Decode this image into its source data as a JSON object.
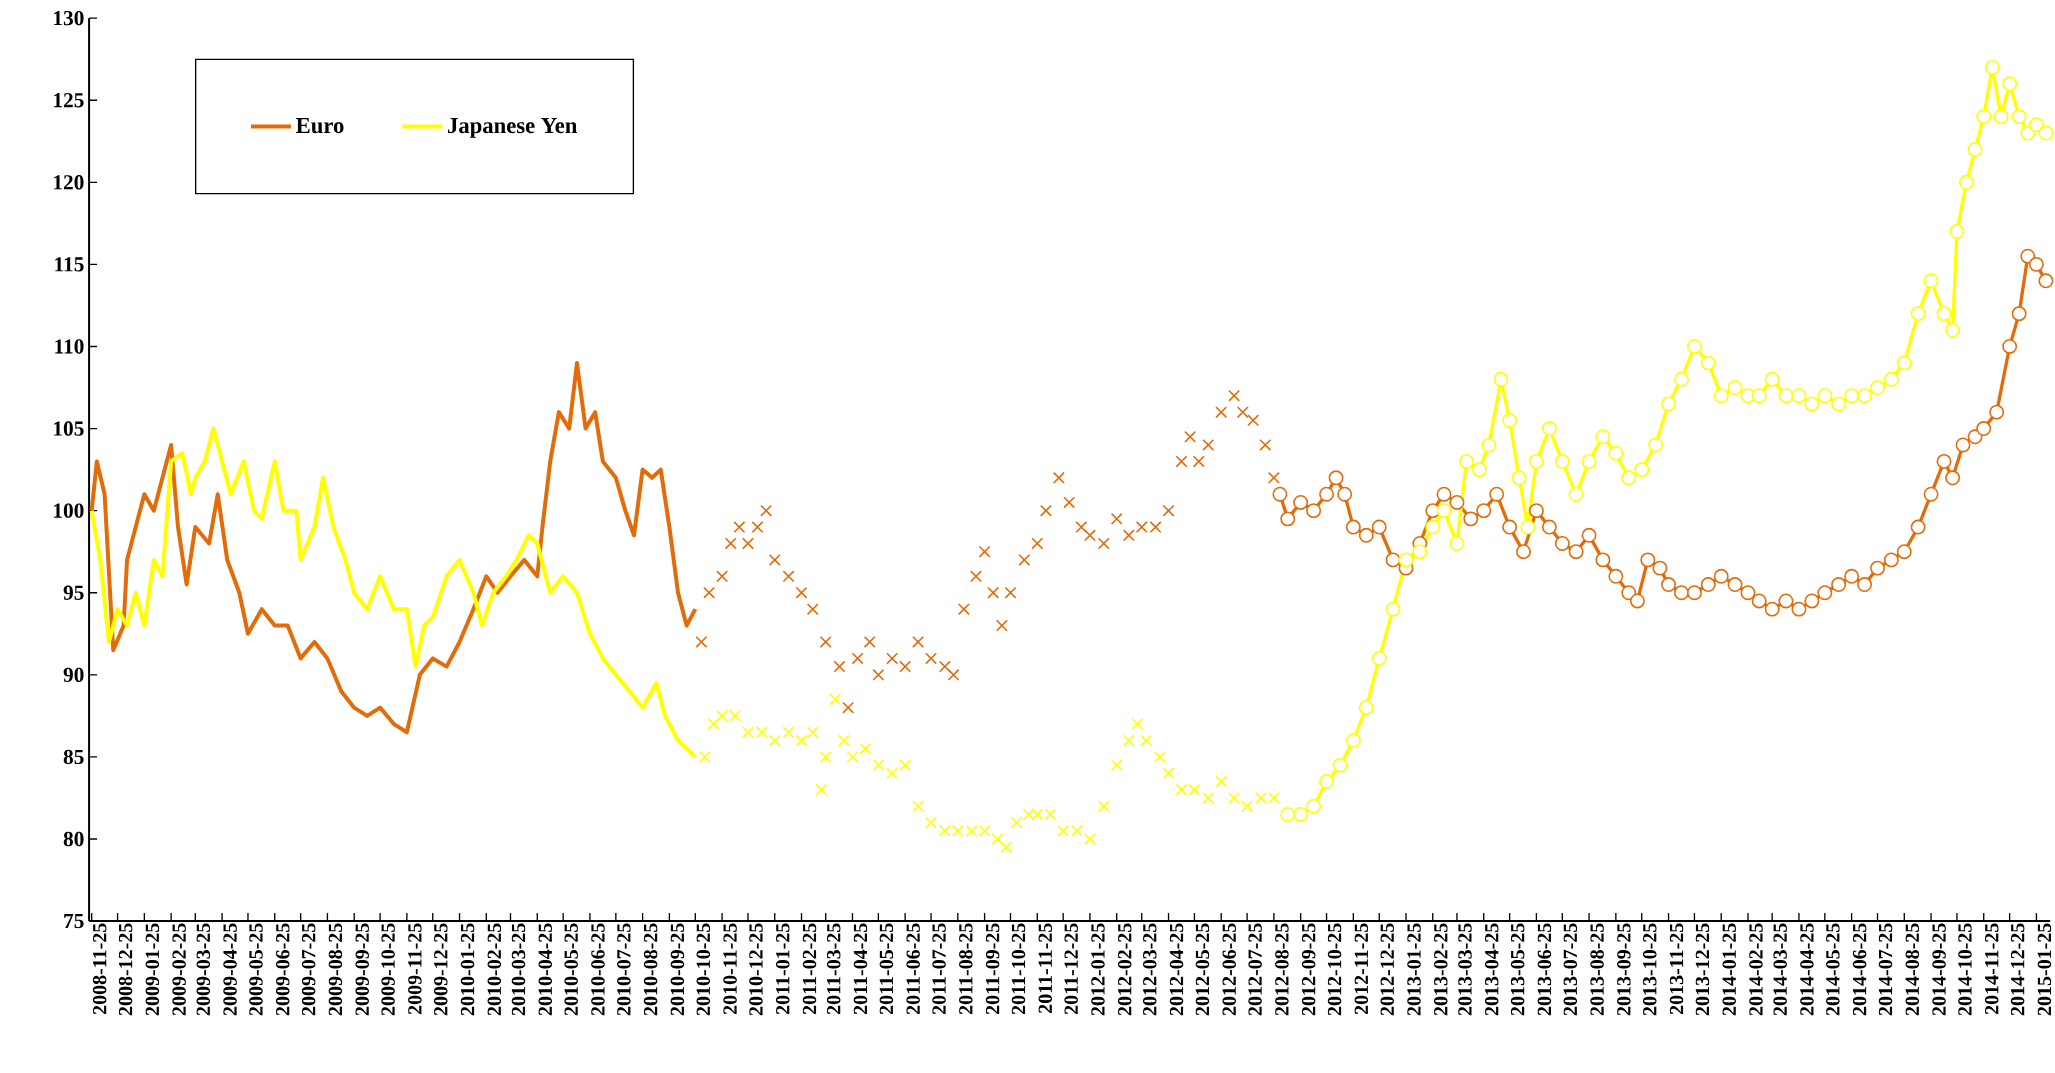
{
  "chart_data": {
    "type": "line",
    "xlim": [
      "2008-11-22",
      "2015-02-10"
    ],
    "ylim": [
      75,
      130
    ],
    "yticks": [
      75,
      80,
      85,
      90,
      95,
      100,
      105,
      110,
      115,
      120,
      125,
      130
    ],
    "xticks": [
      "2008-11-25",
      "2008-12-25",
      "2009-01-25",
      "2009-02-25",
      "2009-03-25",
      "2009-04-25",
      "2009-05-25",
      "2009-06-25",
      "2009-07-25",
      "2009-08-25",
      "2009-09-25",
      "2009-10-25",
      "2009-11-25",
      "2009-12-25",
      "2010-01-25",
      "2010-02-25",
      "2010-03-25",
      "2010-04-25",
      "2010-05-25",
      "2010-06-25",
      "2010-07-25",
      "2010-08-25",
      "2010-09-25",
      "2010-10-25",
      "2010-11-25",
      "2010-12-25",
      "2011-01-25",
      "2011-02-25",
      "2011-03-25",
      "2011-04-25",
      "2011-05-25",
      "2011-06-25",
      "2011-07-25",
      "2011-08-25",
      "2011-09-25",
      "2011-10-25",
      "2011-11-25",
      "2011-12-25",
      "2012-01-25",
      "2012-02-25",
      "2012-03-25",
      "2012-04-25",
      "2012-05-25",
      "2012-06-25",
      "2012-07-25",
      "2012-08-25",
      "2012-09-25",
      "2012-10-25",
      "2012-11-25",
      "2012-12-25",
      "2013-01-25",
      "2013-02-25",
      "2013-03-25",
      "2013-04-25",
      "2013-05-25",
      "2013-06-25",
      "2013-07-25",
      "2013-08-25",
      "2013-09-25",
      "2013-10-25",
      "2013-11-25",
      "2013-12-25",
      "2014-01-25",
      "2014-02-25",
      "2014-03-25",
      "2014-04-25",
      "2014-05-25",
      "2014-06-25",
      "2014-07-25",
      "2014-08-25",
      "2014-09-25",
      "2014-10-25",
      "2014-11-25",
      "2014-12-25",
      "2015-01-25"
    ],
    "legend": "top left",
    "grid": false,
    "series": [
      {
        "name": "Euro",
        "marker": "none",
        "color": "#e36c0a",
        "x": [
          "2008-11-25",
          "2008-12-01",
          "2008-12-10",
          "2008-12-20",
          "2009-01-01",
          "2009-01-05",
          "2009-01-15",
          "2009-01-25",
          "2009-02-05",
          "2009-02-15",
          "2009-02-25",
          "2009-03-05",
          "2009-03-15",
          "2009-03-25",
          "2009-04-10",
          "2009-04-20",
          "2009-05-01",
          "2009-05-15",
          "2009-05-25",
          "2009-06-10",
          "2009-06-25",
          "2009-07-10",
          "2009-07-25",
          "2009-08-10",
          "2009-08-25",
          "2009-09-10",
          "2009-09-25",
          "2009-10-10",
          "2009-10-25",
          "2009-11-10",
          "2009-11-25",
          "2009-12-10",
          "2009-12-25",
          "2010-01-10",
          "2010-01-25",
          "2010-02-10",
          "2010-02-25",
          "2010-03-10",
          "2010-03-25",
          "2010-04-10",
          "2010-04-25",
          "2010-05-01",
          "2010-05-10",
          "2010-05-20",
          "2010-06-01",
          "2010-06-10",
          "2010-06-20",
          "2010-07-01",
          "2010-07-10",
          "2010-07-25",
          "2010-08-05",
          "2010-08-15",
          "2010-08-25",
          "2010-09-05",
          "2010-09-15",
          "2010-09-25",
          "2010-10-05",
          "2010-10-15",
          "2010-10-25"
        ],
        "values": [
          100,
          103,
          101,
          91.5,
          93,
          97,
          99,
          101,
          100,
          102,
          104,
          99,
          95.5,
          99,
          98,
          101,
          97,
          95,
          92.5,
          94,
          93,
          93,
          91,
          92,
          91,
          89,
          88,
          87.5,
          88,
          87,
          86.5,
          90,
          91,
          90.5,
          92,
          94,
          96,
          95,
          96,
          97,
          96,
          99,
          103,
          106,
          105,
          109,
          105,
          106,
          103,
          102,
          100,
          98.5,
          102.5,
          102,
          102.5,
          99,
          95,
          93,
          94
        ]
      },
      {
        "name": "Japanese Yen",
        "marker": "none",
        "color": "#ffff00",
        "x": [
          "2008-11-25",
          "2008-12-05",
          "2008-12-15",
          "2008-12-25",
          "2009-01-05",
          "2009-01-15",
          "2009-01-25",
          "2009-02-05",
          "2009-02-15",
          "2009-02-25",
          "2009-03-10",
          "2009-03-20",
          "2009-03-25",
          "2009-04-05",
          "2009-04-15",
          "2009-04-25",
          "2009-05-05",
          "2009-05-20",
          "2009-06-01",
          "2009-06-10",
          "2009-06-25",
          "2009-07-05",
          "2009-07-20",
          "2009-07-25",
          "2009-08-10",
          "2009-08-20",
          "2009-09-01",
          "2009-09-15",
          "2009-09-25",
          "2009-10-10",
          "2009-10-25",
          "2009-11-10",
          "2009-11-25",
          "2009-12-05",
          "2009-12-15",
          "2009-12-25",
          "2010-01-10",
          "2010-01-25",
          "2010-02-10",
          "2010-02-20",
          "2010-03-05",
          "2010-03-20",
          "2010-04-01",
          "2010-04-15",
          "2010-04-25",
          "2010-05-10",
          "2010-05-25",
          "2010-06-10",
          "2010-06-25",
          "2010-07-10",
          "2010-07-25",
          "2010-08-10",
          "2010-08-25",
          "2010-09-10",
          "2010-09-20",
          "2010-10-05",
          "2010-10-25"
        ],
        "values": [
          100,
          97,
          92,
          94,
          93,
          95,
          93,
          97,
          96,
          103,
          103.5,
          101,
          102,
          103,
          105,
          103,
          101,
          103,
          100,
          99.5,
          103,
          100,
          100,
          97,
          99,
          102,
          99,
          97,
          95,
          94,
          96,
          94,
          94,
          90.5,
          93,
          93.5,
          96,
          97,
          95,
          93,
          95,
          96,
          97,
          98.5,
          98,
          95,
          96,
          95,
          92.5,
          91,
          90,
          89,
          88,
          89.5,
          87.5,
          86,
          85
        ]
      },
      {
        "type": "scatter",
        "marker": "cross",
        "color": "#e36c0a",
        "x": [
          "2010-11-01",
          "2010-11-10",
          "2010-11-25",
          "2010-12-05",
          "2010-12-15",
          "2010-12-25",
          "2011-01-05",
          "2011-01-15",
          "2011-01-25",
          "2011-02-10",
          "2011-02-25",
          "2011-03-10",
          "2011-03-25",
          "2011-04-10",
          "2011-04-20",
          "2011-05-01",
          "2011-05-15",
          "2011-05-25",
          "2011-06-10",
          "2011-06-25",
          "2011-07-10",
          "2011-07-25",
          "2011-08-10",
          "2011-08-20",
          "2011-09-01",
          "2011-09-15",
          "2011-09-25",
          "2011-10-05",
          "2011-10-15",
          "2011-10-25",
          "2011-11-10",
          "2011-11-25",
          "2011-12-05",
          "2011-12-20",
          "2012-01-01",
          "2012-01-15",
          "2012-01-25",
          "2012-02-10",
          "2012-02-25",
          "2012-03-10",
          "2012-03-25",
          "2012-04-10",
          "2012-04-25",
          "2012-05-10",
          "2012-05-20",
          "2012-05-30",
          "2012-06-10",
          "2012-06-25",
          "2012-07-10",
          "2012-07-20",
          "2012-08-01",
          "2012-08-15",
          "2012-08-25"
        ],
        "values": [
          92,
          95,
          96,
          98,
          99,
          98,
          99,
          100,
          97,
          96,
          95,
          94,
          92,
          90.5,
          88,
          91,
          92,
          90,
          91,
          90.5,
          92,
          91,
          90.5,
          90,
          94,
          96,
          97.5,
          95,
          93,
          95,
          97,
          98,
          100,
          102,
          100.5,
          99,
          98.5,
          98,
          99.5,
          98.5,
          99,
          99,
          100,
          103,
          104.5,
          103,
          104,
          106,
          107,
          106,
          105.5,
          104,
          102
        ]
      },
      {
        "type": "scatter",
        "marker": "cross",
        "color": "#ffff00",
        "x": [
          "2010-11-05",
          "2010-11-15",
          "2010-11-25",
          "2010-12-10",
          "2010-12-25",
          "2011-01-10",
          "2011-01-25",
          "2011-02-10",
          "2011-02-25",
          "2011-03-10",
          "2011-03-20",
          "2011-03-25",
          "2011-04-05",
          "2011-04-15",
          "2011-04-25",
          "2011-05-10",
          "2011-05-25",
          "2011-06-10",
          "2011-06-25",
          "2011-07-10",
          "2011-07-25",
          "2011-08-10",
          "2011-08-25",
          "2011-09-10",
          "2011-09-25",
          "2011-10-10",
          "2011-10-20",
          "2011-11-01",
          "2011-11-15",
          "2011-11-25",
          "2011-12-10",
          "2011-12-25",
          "2012-01-10",
          "2012-01-25",
          "2012-02-10",
          "2012-02-25",
          "2012-03-10",
          "2012-03-20",
          "2012-03-30",
          "2012-04-15",
          "2012-04-25",
          "2012-05-10",
          "2012-05-25",
          "2012-06-10",
          "2012-06-25",
          "2012-07-10",
          "2012-07-25",
          "2012-08-10",
          "2012-08-25"
        ],
        "values": [
          85,
          87,
          87.5,
          87.5,
          86.5,
          86.5,
          86,
          86.5,
          86,
          86.5,
          83,
          85,
          88.5,
          86,
          85,
          85.5,
          84.5,
          84,
          84.5,
          82,
          81,
          80.5,
          80.5,
          80.5,
          80.5,
          80,
          79.5,
          81,
          81.5,
          81.5,
          81.5,
          80.5,
          80.5,
          80,
          82,
          84.5,
          86,
          87,
          86,
          85,
          84,
          83,
          83,
          82.5,
          83.5,
          82.5,
          82,
          82.5,
          82.5
        ]
      },
      {
        "marker": "circle",
        "color": "#e36c0a",
        "x": [
          "2012-09-01",
          "2012-09-10",
          "2012-09-25",
          "2012-10-10",
          "2012-10-25",
          "2012-11-05",
          "2012-11-15",
          "2012-11-25",
          "2012-12-10",
          "2012-12-25",
          "2013-01-10",
          "2013-01-25",
          "2013-02-10",
          "2013-02-25",
          "2013-03-10",
          "2013-03-25",
          "2013-04-10",
          "2013-04-25",
          "2013-05-10",
          "2013-05-25",
          "2013-06-10",
          "2013-06-25",
          "2013-07-10",
          "2013-07-25",
          "2013-08-10",
          "2013-08-25",
          "2013-09-10",
          "2013-09-25",
          "2013-10-10",
          "2013-10-20",
          "2013-11-01",
          "2013-11-15",
          "2013-11-25",
          "2013-12-10",
          "2013-12-25",
          "2014-01-10",
          "2014-01-25",
          "2014-02-10",
          "2014-02-25",
          "2014-03-10",
          "2014-03-25",
          "2014-04-10",
          "2014-04-25",
          "2014-05-10",
          "2014-05-25",
          "2014-06-10",
          "2014-06-25",
          "2014-07-10",
          "2014-07-25",
          "2014-08-10",
          "2014-08-25",
          "2014-09-10",
          "2014-09-25",
          "2014-10-10",
          "2014-10-20",
          "2014-11-01",
          "2014-11-15",
          "2014-11-25",
          "2014-12-10",
          "2014-12-25",
          "2015-01-05",
          "2015-01-15",
          "2015-01-25",
          "2015-02-05"
        ],
        "values": [
          101,
          99.5,
          100.5,
          100,
          101,
          102,
          101,
          99,
          98.5,
          99,
          97,
          96.5,
          98,
          100,
          101,
          100.5,
          99.5,
          100,
          101,
          99,
          97.5,
          100,
          99,
          98,
          97.5,
          98.5,
          97,
          96,
          95,
          94.5,
          97,
          96.5,
          95.5,
          95,
          95,
          95.5,
          96,
          95.5,
          95,
          94.5,
          94,
          94.5,
          94,
          94.5,
          95,
          95.5,
          96,
          95.5,
          96.5,
          97,
          97.5,
          99,
          101,
          103,
          102,
          104,
          104.5,
          105,
          106,
          110,
          112,
          115.5,
          115,
          114
        ]
      },
      {
        "marker": "circle",
        "color": "#ffff00",
        "x": [
          "2012-09-10",
          "2012-09-25",
          "2012-10-10",
          "2012-10-25",
          "2012-11-10",
          "2012-11-25",
          "2012-12-10",
          "2012-12-25",
          "2013-01-10",
          "2013-01-25",
          "2013-02-10",
          "2013-02-25",
          "2013-03-10",
          "2013-03-25",
          "2013-04-05",
          "2013-04-20",
          "2013-05-01",
          "2013-05-15",
          "2013-05-25",
          "2013-06-05",
          "2013-06-15",
          "2013-06-25",
          "2013-07-10",
          "2013-07-25",
          "2013-08-10",
          "2013-08-25",
          "2013-09-10",
          "2013-09-25",
          "2013-10-10",
          "2013-10-25",
          "2013-11-10",
          "2013-11-25",
          "2013-12-10",
          "2013-12-25",
          "2014-01-10",
          "2014-01-25",
          "2014-02-10",
          "2014-02-25",
          "2014-03-10",
          "2014-03-25",
          "2014-04-10",
          "2014-04-25",
          "2014-05-10",
          "2014-05-25",
          "2014-06-10",
          "2014-06-25",
          "2014-07-10",
          "2014-07-25",
          "2014-08-10",
          "2014-08-25",
          "2014-09-10",
          "2014-09-25",
          "2014-10-10",
          "2014-10-20",
          "2014-10-25",
          "2014-11-05",
          "2014-11-15",
          "2014-11-25",
          "2014-12-05",
          "2014-12-15",
          "2014-12-25",
          "2015-01-05",
          "2015-01-15",
          "2015-01-25",
          "2015-02-05"
        ],
        "values": [
          81.5,
          81.5,
          82,
          83.5,
          84.5,
          86,
          88,
          91,
          94,
          97,
          97.5,
          99,
          100,
          98,
          103,
          102.5,
          104,
          108,
          105.5,
          102,
          99,
          103,
          105,
          103,
          101,
          103,
          104.5,
          103.5,
          102,
          102.5,
          104,
          106.5,
          108,
          110,
          109,
          107,
          107.5,
          107,
          107,
          108,
          107,
          107,
          106.5,
          107,
          106.5,
          107,
          107,
          107.5,
          108,
          109,
          112,
          114,
          112,
          111,
          117,
          120,
          122,
          124,
          127,
          124,
          126,
          124,
          123,
          123.5,
          123
        ]
      }
    ]
  }
}
